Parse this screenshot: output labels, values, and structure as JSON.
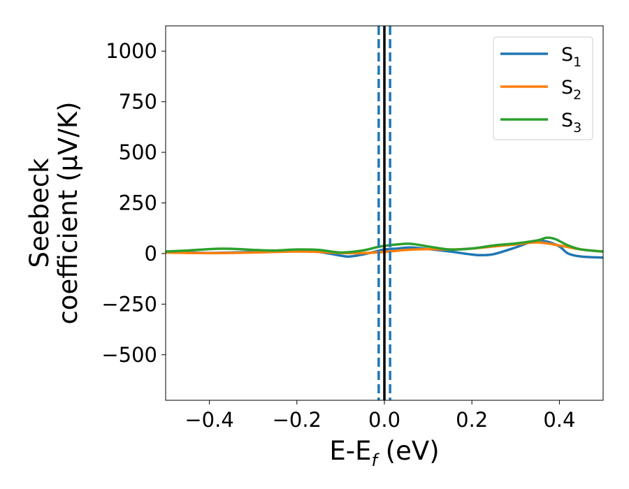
{
  "chart_data": {
    "type": "line",
    "xlabel": {
      "base": "E-E",
      "sub": "f",
      "unit": " (eV)"
    },
    "ylabel": {
      "line1": "Seebeck",
      "line2": "coefficient  (μV/K)"
    },
    "xlim": [
      -0.5,
      0.5
    ],
    "ylim": [
      -725,
      1125
    ],
    "xticks": [
      -0.4,
      -0.2,
      0.0,
      0.2,
      0.4
    ],
    "xtick_labels": [
      "−0.4",
      "−0.2",
      "0.0",
      "0.2",
      "0.4"
    ],
    "yticks": [
      -500,
      -250,
      0,
      250,
      500,
      750,
      1000
    ],
    "ytick_labels": [
      "−500",
      "−250",
      "0",
      "250",
      "500",
      "750",
      "1000"
    ],
    "grid": false,
    "legend_position": "top-right",
    "series": [
      {
        "name": "S",
        "sub": "1",
        "color": "#1f77b4",
        "x": [
          -0.5,
          -0.45,
          -0.4,
          -0.35,
          -0.3,
          -0.25,
          -0.2,
          -0.15,
          -0.1,
          -0.08,
          -0.05,
          -0.02,
          0.0,
          0.03,
          0.06,
          0.1,
          0.15,
          0.2,
          0.22,
          0.25,
          0.3,
          0.34,
          0.37,
          0.4,
          0.42,
          0.45,
          0.5
        ],
        "y": [
          8,
          5,
          3,
          5,
          8,
          12,
          15,
          8,
          -10,
          -15,
          -5,
          10,
          20,
          25,
          30,
          22,
          10,
          -5,
          -8,
          -3,
          30,
          60,
          60,
          35,
          0,
          -15,
          -20
        ]
      },
      {
        "name": "S",
        "sub": "2",
        "color": "#ff7f0e",
        "x": [
          -0.5,
          -0.45,
          -0.4,
          -0.35,
          -0.3,
          -0.25,
          -0.2,
          -0.15,
          -0.1,
          -0.05,
          0.0,
          0.05,
          0.1,
          0.15,
          0.2,
          0.25,
          0.3,
          0.35,
          0.4,
          0.45,
          0.5
        ],
        "y": [
          5,
          3,
          2,
          3,
          5,
          8,
          10,
          8,
          3,
          2,
          8,
          18,
          22,
          20,
          25,
          35,
          45,
          55,
          40,
          20,
          10
        ]
      },
      {
        "name": "S",
        "sub": "3",
        "color": "#2ca02c",
        "x": [
          -0.5,
          -0.45,
          -0.4,
          -0.37,
          -0.33,
          -0.3,
          -0.25,
          -0.2,
          -0.15,
          -0.1,
          -0.05,
          -0.02,
          0.0,
          0.03,
          0.06,
          0.1,
          0.15,
          0.2,
          0.25,
          0.3,
          0.35,
          0.37,
          0.39,
          0.42,
          0.45,
          0.5
        ],
        "y": [
          10,
          15,
          22,
          24,
          22,
          18,
          15,
          20,
          18,
          5,
          15,
          30,
          38,
          45,
          48,
          35,
          20,
          25,
          40,
          50,
          65,
          78,
          72,
          40,
          20,
          10
        ]
      }
    ],
    "vlines": [
      {
        "x": 0.0,
        "color": "#000000",
        "style": "solid"
      },
      {
        "x": -0.013,
        "color": "#1f77b4",
        "style": "dashed"
      },
      {
        "x": 0.013,
        "color": "#1f77b4",
        "style": "dashed"
      }
    ]
  }
}
